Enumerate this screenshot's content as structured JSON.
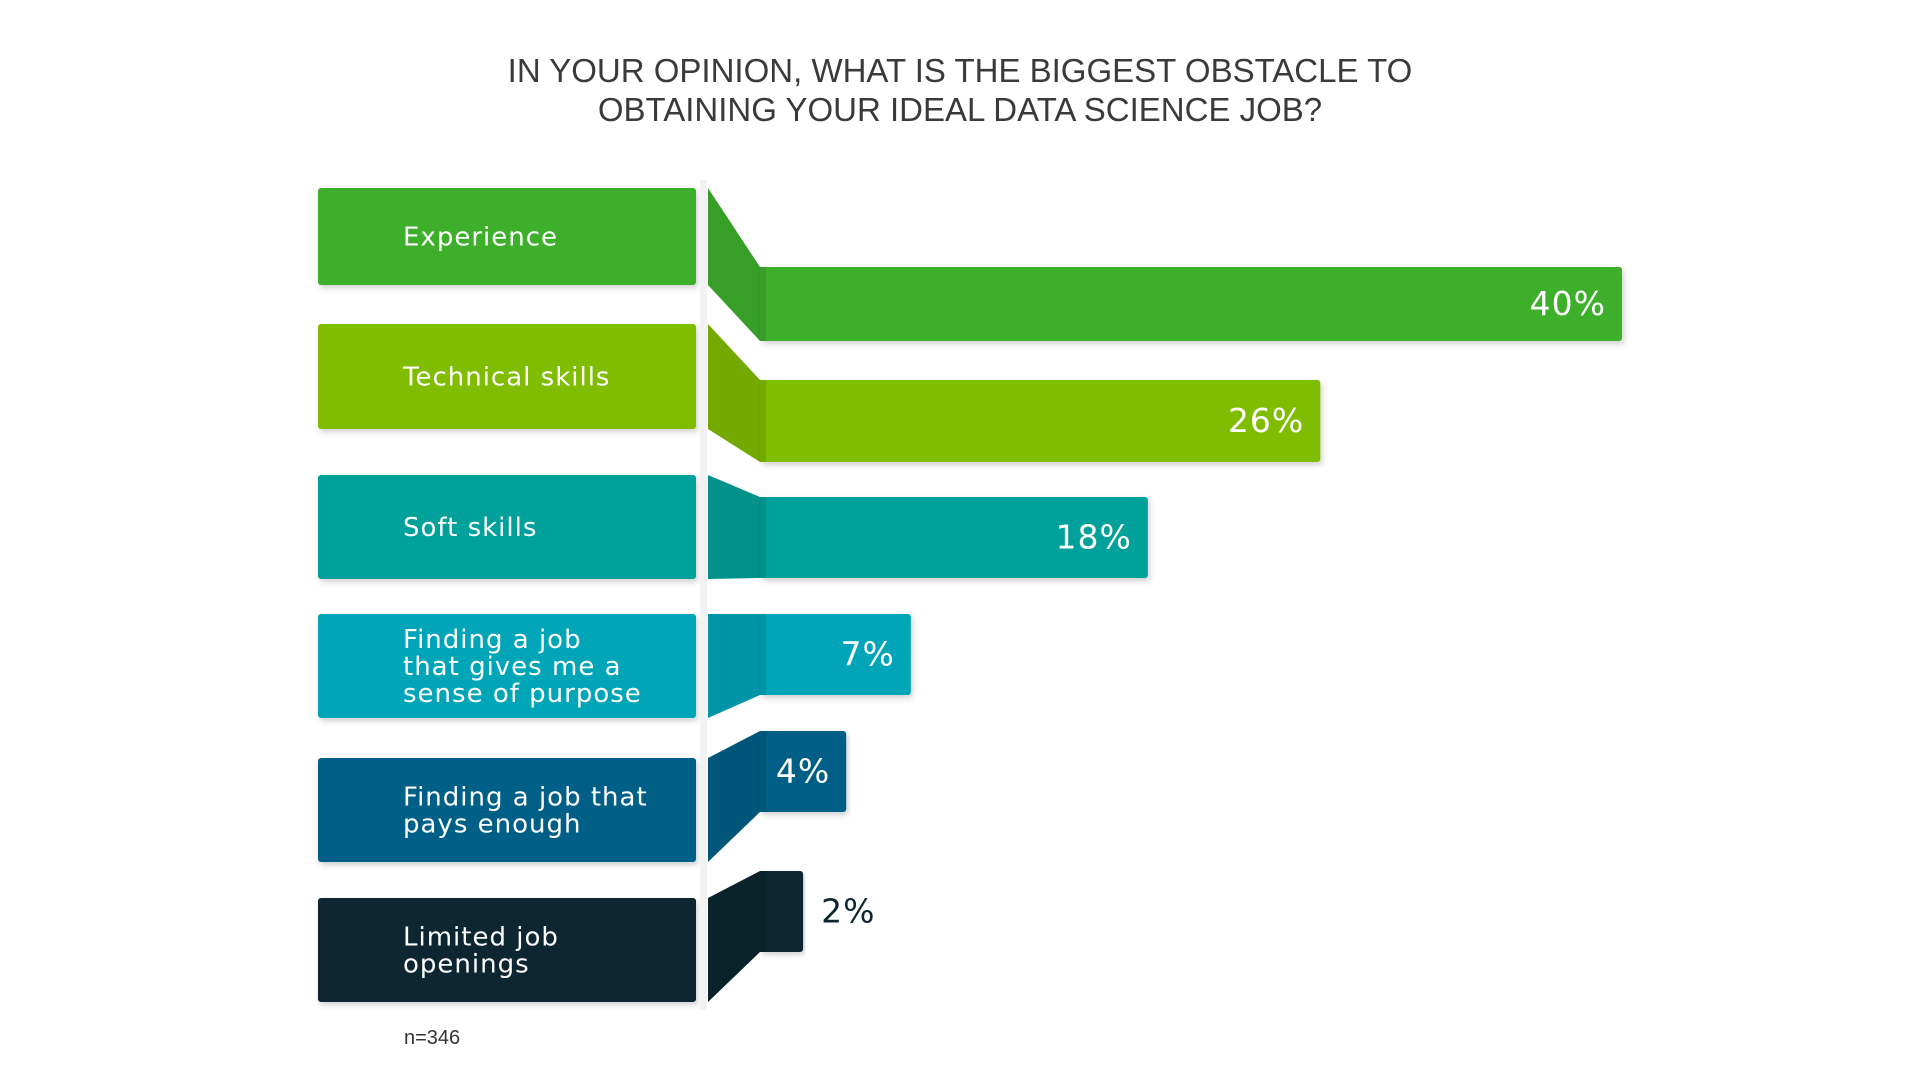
{
  "chart_data": {
    "type": "bar",
    "title": [
      "IN YOUR OPINION, WHAT IS THE BIGGEST OBSTACLE TO",
      "OBTAINING YOUR IDEAL DATA SCIENCE JOB?"
    ],
    "categories": [
      [
        "Experience"
      ],
      [
        "Technical skills"
      ],
      [
        "Soft skills"
      ],
      [
        "Finding a job",
        "that gives me a",
        "sense of purpose"
      ],
      [
        "Finding a job that",
        "pays enough"
      ],
      [
        "Limited job",
        "openings"
      ]
    ],
    "values": [
      40,
      26,
      18,
      7,
      4,
      2
    ],
    "value_labels": [
      "40%",
      "26%",
      "18%",
      "7%",
      "4%",
      "2%"
    ],
    "unit": "%",
    "colors": [
      "#3daf2c",
      "#80bc00",
      "#00a19a",
      "#00a5b8",
      "#005f86",
      "#0b2730"
    ],
    "value_label_colors": [
      "#ffffff",
      "#ffffff",
      "#ffffff",
      "#ffffff",
      "#ffffff",
      "#0b2730"
    ],
    "note": "n=346",
    "grid": false,
    "legend": "none"
  }
}
